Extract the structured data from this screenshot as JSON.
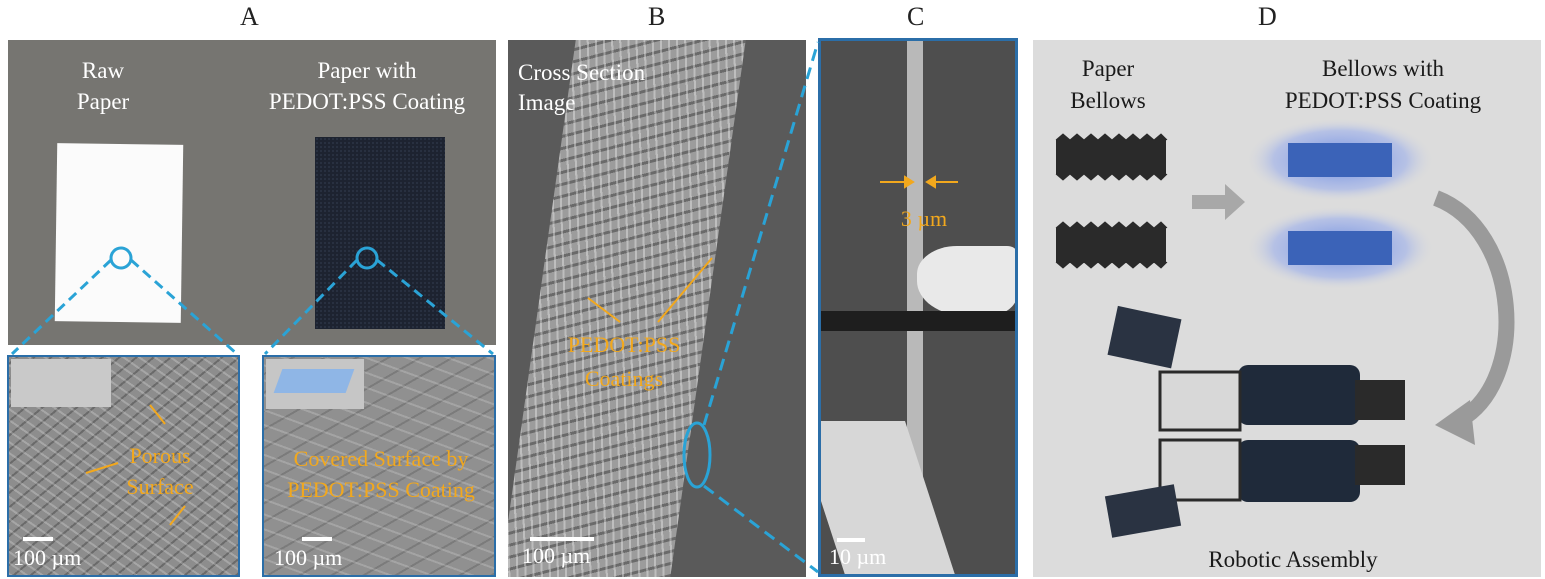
{
  "panels": {
    "a": {
      "letter": "A",
      "raw_label_1": "Raw",
      "raw_label_2": "Paper",
      "coated_label_1": "Paper with",
      "coated_label_2": "PEDOT:PSS Coating",
      "porous_1": "Porous",
      "porous_2": "Surface",
      "covered_1": "Covered Surface by",
      "covered_2": "PEDOT:PSS Coating",
      "scale_left": "100 µm",
      "scale_right": "100 µm"
    },
    "b": {
      "letter": "B",
      "title_1": "Cross Section",
      "title_2": "Image",
      "coat_1": "PEDOT:PSS",
      "coat_2": "Coatings",
      "scale": "100 µm"
    },
    "c": {
      "letter": "C",
      "thickness": "3 µm",
      "scale": "10 µm"
    },
    "d": {
      "letter": "D",
      "bellows_1": "Paper",
      "bellows_2": "Bellows",
      "coated_1": "Bellows with",
      "coated_2": "PEDOT:PSS Coating",
      "assembly": "Robotic Assembly"
    }
  },
  "colors": {
    "accent_blue": "#2aa3d6",
    "annotation_orange": "#f2a81d",
    "coated_blue": "#3b63b8"
  }
}
